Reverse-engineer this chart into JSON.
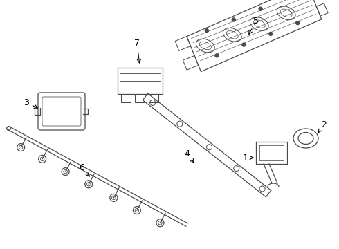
{
  "background_color": "#ffffff",
  "line_color": "#4a4a4a",
  "line_width": 0.9,
  "label_color": "#000000",
  "label_fontsize": 9,
  "fig_width": 4.9,
  "fig_height": 3.6,
  "dpi": 100,
  "xlim": [
    0,
    490
  ],
  "ylim": [
    0,
    360
  ]
}
